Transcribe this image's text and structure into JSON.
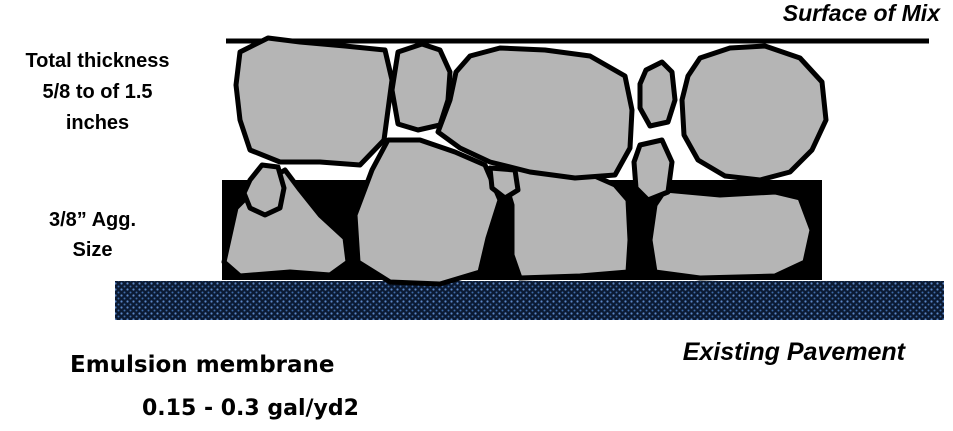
{
  "labels": {
    "surface_of_mix": "Surface of Mix",
    "total_thickness_lines": [
      "Total thickness",
      "5/8 to of 1.5",
      "inches"
    ],
    "agg_size_lines": [
      "3/8”  Agg.",
      "Size"
    ],
    "existing_pavement": "Existing Pavement",
    "emulsion_membrane": "Emulsion membrane",
    "application_rate": "0.15 - 0.3 gal/yd2"
  },
  "colors": {
    "stone_fill": "#b5b5b5",
    "outline": "#000000",
    "pavement_dark": "#0b1a33",
    "pavement_dot": "#5b86c6",
    "background": "#ffffff"
  }
}
